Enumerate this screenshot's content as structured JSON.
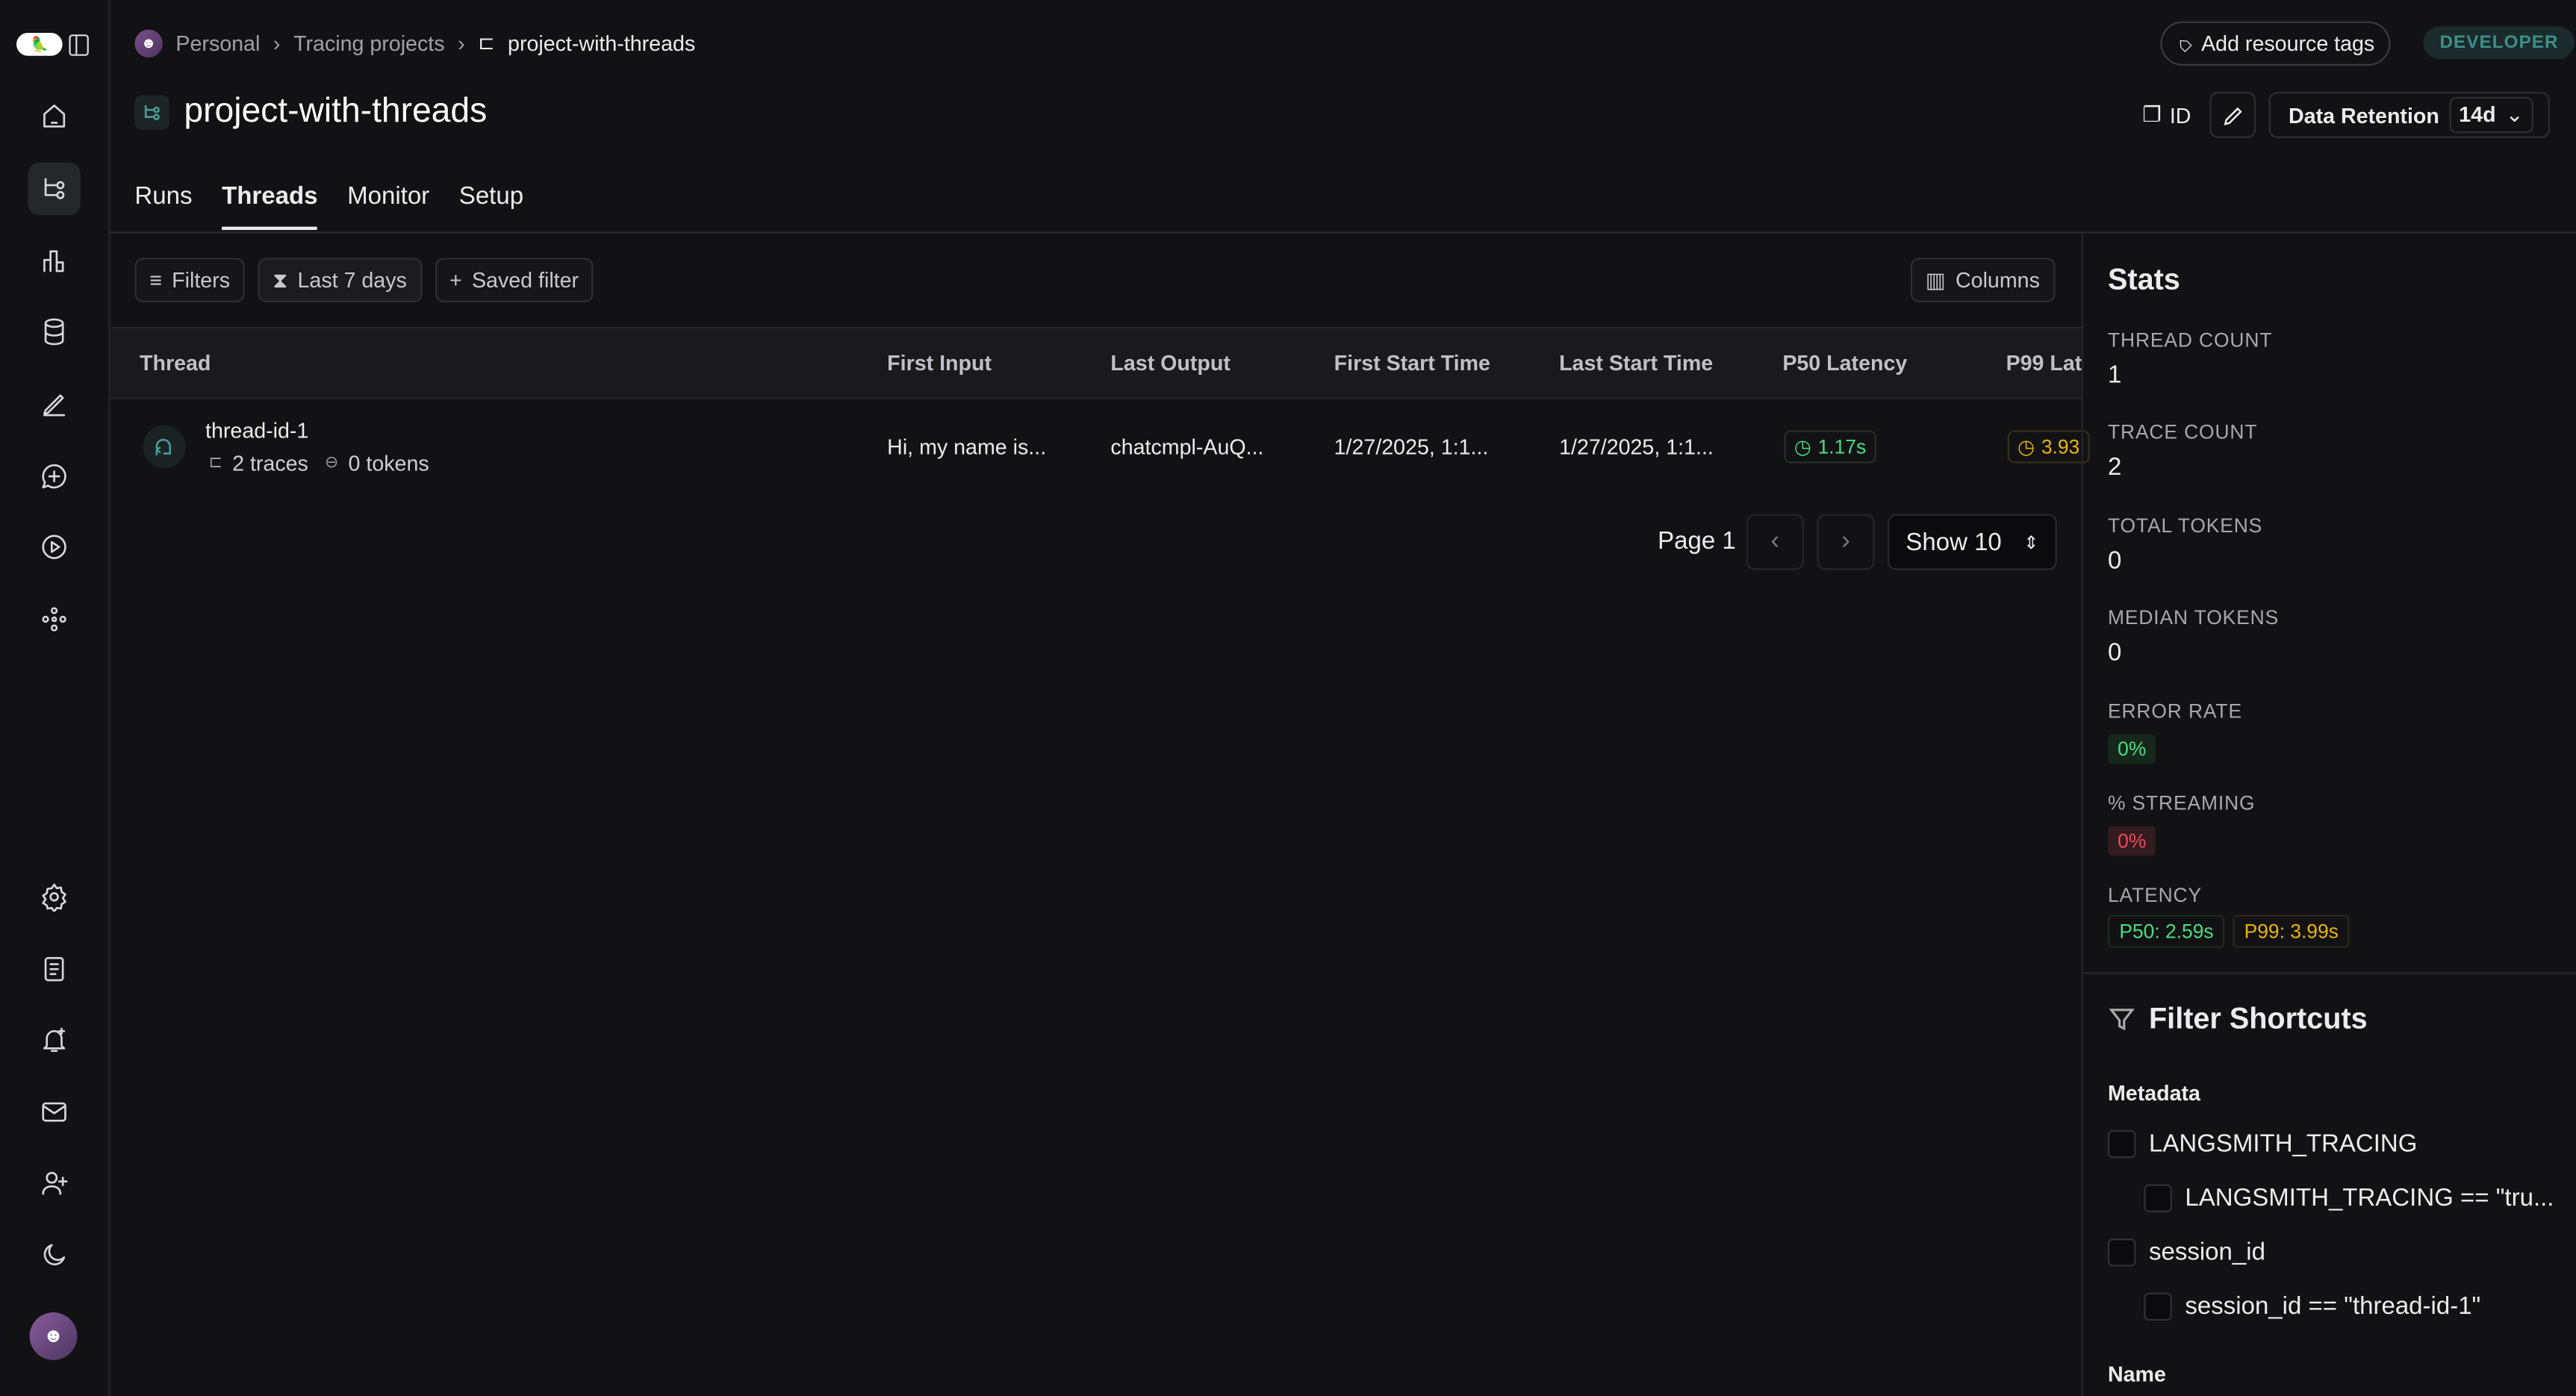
{
  "breadcrumb": {
    "workspace": "Personal",
    "section": "Tracing projects",
    "project": "project-with-threads"
  },
  "header": {
    "title": "project-with-threads",
    "add_tags": "Add resource tags",
    "plan_badge": "DEVELOPER",
    "id_label": "ID",
    "retention_label": "Data Retention",
    "retention_value": "14d"
  },
  "tabs": [
    {
      "label": "Runs"
    },
    {
      "label": "Threads",
      "active": true
    },
    {
      "label": "Monitor"
    },
    {
      "label": "Setup"
    }
  ],
  "toolbar": {
    "filters": "Filters",
    "time_range": "Last 7 days",
    "saved_filter": "Saved filter",
    "columns": "Columns"
  },
  "table": {
    "columns": [
      "Thread",
      "First Input",
      "Last Output",
      "First Start Time",
      "Last Start Time",
      "P50 Latency",
      "P99 Lat"
    ],
    "rows": [
      {
        "thread": "thread-id-1",
        "traces": "2 traces",
        "tokens": "0 tokens",
        "first_input": "Hi, my name is...",
        "last_output": "chatcmpl-AuQ...",
        "first_start": "1/27/2025, 1:1...",
        "last_start": "1/27/2025, 1:1...",
        "p50": "1.17s",
        "p99": "3.93"
      }
    ]
  },
  "pagination": {
    "page": "Page 1",
    "show": "Show 10"
  },
  "stats": {
    "title": "Stats",
    "thread_count_label": "THREAD COUNT",
    "thread_count": "1",
    "trace_count_label": "TRACE COUNT",
    "trace_count": "2",
    "total_tokens_label": "TOTAL TOKENS",
    "total_tokens": "0",
    "median_tokens_label": "MEDIAN TOKENS",
    "median_tokens": "0",
    "error_rate_label": "ERROR RATE",
    "error_rate": "0%",
    "streaming_label": "% STREAMING",
    "streaming": "0%",
    "latency_label": "LATENCY",
    "p50": "P50: 2.59s",
    "p99": "P99: 3.99s"
  },
  "filter_shortcuts": {
    "title": "Filter Shortcuts",
    "metadata_label": "Metadata",
    "items": [
      "LANGSMITH_TRACING",
      "LANGSMITH_TRACING == \"tru...",
      "session_id",
      "session_id == \"thread-id-1\""
    ],
    "name_label": "Name"
  },
  "colors": {
    "green": "#4ade80",
    "yellow": "#eab308",
    "red": "#f04a5a",
    "teal": "#3d8f8a"
  }
}
